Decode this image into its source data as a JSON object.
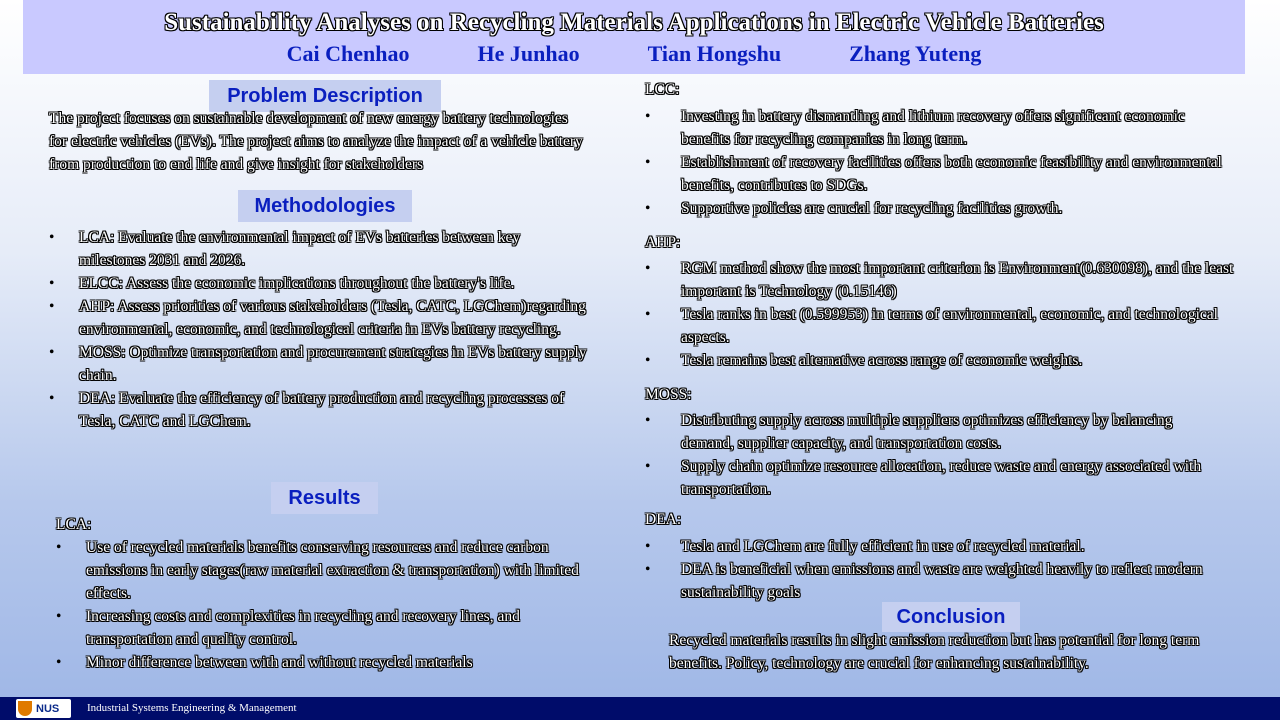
{
  "header": {
    "title": "Sustainability Analyses on Recycling Materials Applications in Electric Vehicle Batteries",
    "authors": [
      "Cai Chenhao",
      "He Junhao",
      "Tian Hongshu",
      "Zhang Yuteng"
    ]
  },
  "left": {
    "problem_heading": "Problem Description",
    "problem_text": "The project focuses on sustainable development of new energy battery technologies for electric vehicles (EVs). The project aims to analyze the impact of a vehicle battery from production to end life and give insight for stakeholders",
    "methodologies_heading": "Methodologies",
    "methodologies": [
      "LCA: Evaluate the environmental impact of EVs batteries between key milestones 2031 and 2026.",
      "ELCC: Assess the economic implications throughout the battery's life.",
      "AHP: Assess priorities of various stakeholders (Tesla, CATC, LGChem)regarding environmental, economic, and technological criteria in EVs battery recycling.",
      "MOSS: Optimize transportation and procurement strategies in EVs battery supply chain.",
      "DEA: Evaluate the efficiency of battery production and recycling processes of Tesla, CATC and LGChem."
    ],
    "results_heading": "Results",
    "lca_label": "LCA:",
    "lca_items": [
      "Use of recycled materials benefits conserving resources and reduce carbon emissions in early stages(raw material extraction & transportation) with limited effects.",
      "Increasing costs and complexities in recycling and recovery lines, and transportation and quality control.",
      "Minor difference between with and without recycled materials"
    ]
  },
  "right": {
    "lcc_label": "LCC:",
    "lcc_items": [
      "Investing in battery dismantling and lithium recovery offers significant economic benefits for recycling companies in long term.",
      "Establishment of recovery facilities offers both economic feasibility and environmental benefits, contributes to SDGs.",
      "Supportive policies are crucial for recycling facilities growth."
    ],
    "ahp_label": "AHP:",
    "ahp_items": [
      "RGM method show the most important criterion is Environment(0.630098), and the least important is Technology (0.15146)",
      "Tesla ranks in best (0.599953) in terms of environmental, economic, and technological aspects.",
      "Tesla remains best alternative across range of economic weights."
    ],
    "moss_label": "MOSS:",
    "moss_items": [
      "Distributing supply across multiple suppliers optimizes efficiency by balancing demand, supplier capacity, and transportation costs.",
      "Supply chain optimize resource allocation, reduce waste and energy associated with transportation."
    ],
    "dea_label": "DEA:",
    "dea_items": [
      "Tesla and LGChem are fully efficient in use of recycled material.",
      "DEA is beneficial when emissions and waste are weighted heavily to reflect modern sustainability goals"
    ],
    "conclusion_heading": "Conclusion",
    "conclusion_text": "Recycled materials results in slight emission reduction but has potential for long term benefits. Policy, technology are crucial for enhancing sustainability."
  },
  "footer": {
    "logo_text": "NUS",
    "department": "Industrial Systems Engineering & Management"
  },
  "colors": {
    "header_bg": "#c9c9ff",
    "author_blue": "#0a1fbf",
    "heading_bg": "#c5cff0",
    "footer_bg": "#000c6a"
  }
}
